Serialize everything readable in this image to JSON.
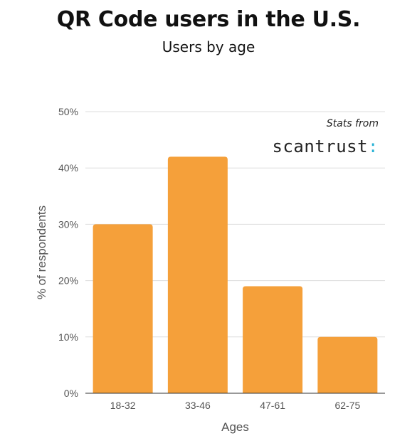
{
  "chart_data": {
    "type": "bar",
    "title": "QR Code users in the U.S.",
    "subtitle": "Users by age",
    "categories": [
      "18-32",
      "33-46",
      "47-61",
      "62-75"
    ],
    "values": [
      30,
      42,
      19,
      10
    ],
    "xlabel": "Ages",
    "ylabel": "% of respondents",
    "ylim": [
      0,
      50
    ],
    "yticks": [
      0,
      10,
      20,
      30,
      40,
      50
    ],
    "ytick_labels": [
      "0%",
      "10%",
      "20%",
      "30%",
      "40%",
      "50%"
    ],
    "grid": true,
    "bar_color": "#f5a03a",
    "annotation": {
      "label": "Stats from",
      "brand": "scantrust",
      "brand_accent": ":",
      "brand_accent_color": "#2bb3d6"
    }
  }
}
